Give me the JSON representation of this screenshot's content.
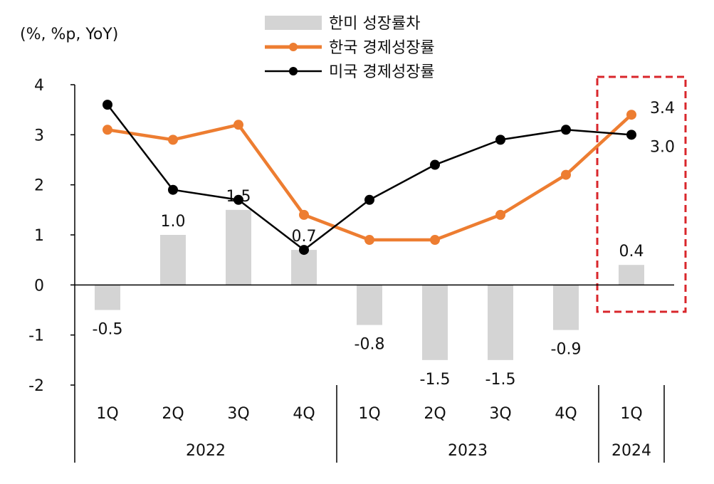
{
  "chart_data": {
    "type": "bar",
    "unit_label": "(%, %p, YoY)",
    "ylim": [
      -2,
      4
    ],
    "yticks": [
      "4",
      "3",
      "2",
      "1",
      "0",
      "-1",
      "-2"
    ],
    "categories": [
      "1Q",
      "2Q",
      "3Q",
      "4Q",
      "1Q",
      "2Q",
      "3Q",
      "4Q",
      "1Q"
    ],
    "year_groups": [
      {
        "label": "2022",
        "count": 4
      },
      {
        "label": "2023",
        "count": 4
      },
      {
        "label": "2024",
        "count": 1
      }
    ],
    "series": [
      {
        "name": "한미 성장률차",
        "type": "bar",
        "color": "#d4d4d4",
        "values": [
          -0.5,
          1.0,
          1.5,
          0.7,
          -0.8,
          -1.5,
          -1.5,
          -0.9,
          0.4
        ],
        "labels": [
          "-0.5",
          "1.0",
          "1.5",
          "0.7",
          "-0.8",
          "-1.5",
          "-1.5",
          "-0.9",
          "0.4"
        ]
      },
      {
        "name": "한국 경제성장률",
        "type": "line",
        "color": "#ed7d31",
        "values": [
          3.1,
          2.9,
          3.2,
          1.4,
          0.9,
          0.9,
          1.4,
          2.2,
          3.4
        ],
        "end_label": "3.4"
      },
      {
        "name": "미국 경제성장률",
        "type": "line",
        "color": "#000000",
        "values": [
          3.6,
          1.9,
          1.7,
          0.7,
          1.7,
          2.4,
          2.9,
          3.1,
          3.0
        ],
        "end_label": "3.0"
      }
    ],
    "highlight": {
      "category_index": 8,
      "color": "#d9262b",
      "style": "dashed"
    }
  }
}
